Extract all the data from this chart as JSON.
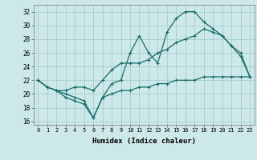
{
  "xlabel": "Humidex (Indice chaleur)",
  "bg_color": "#cce8e8",
  "grid_color": "#aacccc",
  "line_color": "#1a6b6b",
  "xlim": [
    -0.5,
    23.5
  ],
  "ylim": [
    15.5,
    33.0
  ],
  "xticks": [
    0,
    1,
    2,
    3,
    4,
    5,
    6,
    7,
    8,
    9,
    10,
    11,
    12,
    13,
    14,
    15,
    16,
    17,
    18,
    19,
    20,
    21,
    22,
    23
  ],
  "yticks": [
    16,
    18,
    20,
    22,
    24,
    26,
    28,
    30,
    32
  ],
  "line1_x": [
    0,
    1,
    2,
    3,
    4,
    5,
    6,
    7,
    8,
    9,
    10,
    11,
    12,
    13,
    14,
    15,
    16,
    17,
    18,
    19,
    20,
    21,
    22,
    23
  ],
  "line1_y": [
    22,
    21,
    20.5,
    19.5,
    19.0,
    18.5,
    16.5,
    19.5,
    21.5,
    22,
    26.0,
    28.5,
    26.0,
    24.5,
    29.0,
    31.0,
    32.0,
    32.0,
    30.5,
    29.5,
    28.5,
    27.0,
    25.5,
    22.5
  ],
  "line2_x": [
    0,
    1,
    2,
    3,
    4,
    5,
    6,
    7,
    8,
    9,
    10,
    11,
    12,
    13,
    14,
    15,
    16,
    17,
    18,
    19,
    20,
    21,
    22,
    23
  ],
  "line2_y": [
    22,
    21,
    20.5,
    20.5,
    21.0,
    21.0,
    20.5,
    22.0,
    23.5,
    24.5,
    24.5,
    24.5,
    25.0,
    26.0,
    26.5,
    27.5,
    28.0,
    28.5,
    29.5,
    29.0,
    28.5,
    27.0,
    26.0,
    22.5
  ],
  "line3_x": [
    0,
    1,
    2,
    3,
    4,
    5,
    6,
    7,
    8,
    9,
    10,
    11,
    12,
    13,
    14,
    15,
    16,
    17,
    18,
    19,
    20,
    21,
    22,
    23
  ],
  "line3_y": [
    22,
    21,
    20.5,
    20.0,
    19.5,
    19.0,
    16.5,
    19.5,
    20.0,
    20.5,
    20.5,
    21.0,
    21.0,
    21.5,
    21.5,
    22.0,
    22.0,
    22.0,
    22.5,
    22.5,
    22.5,
    22.5,
    22.5,
    22.5
  ]
}
